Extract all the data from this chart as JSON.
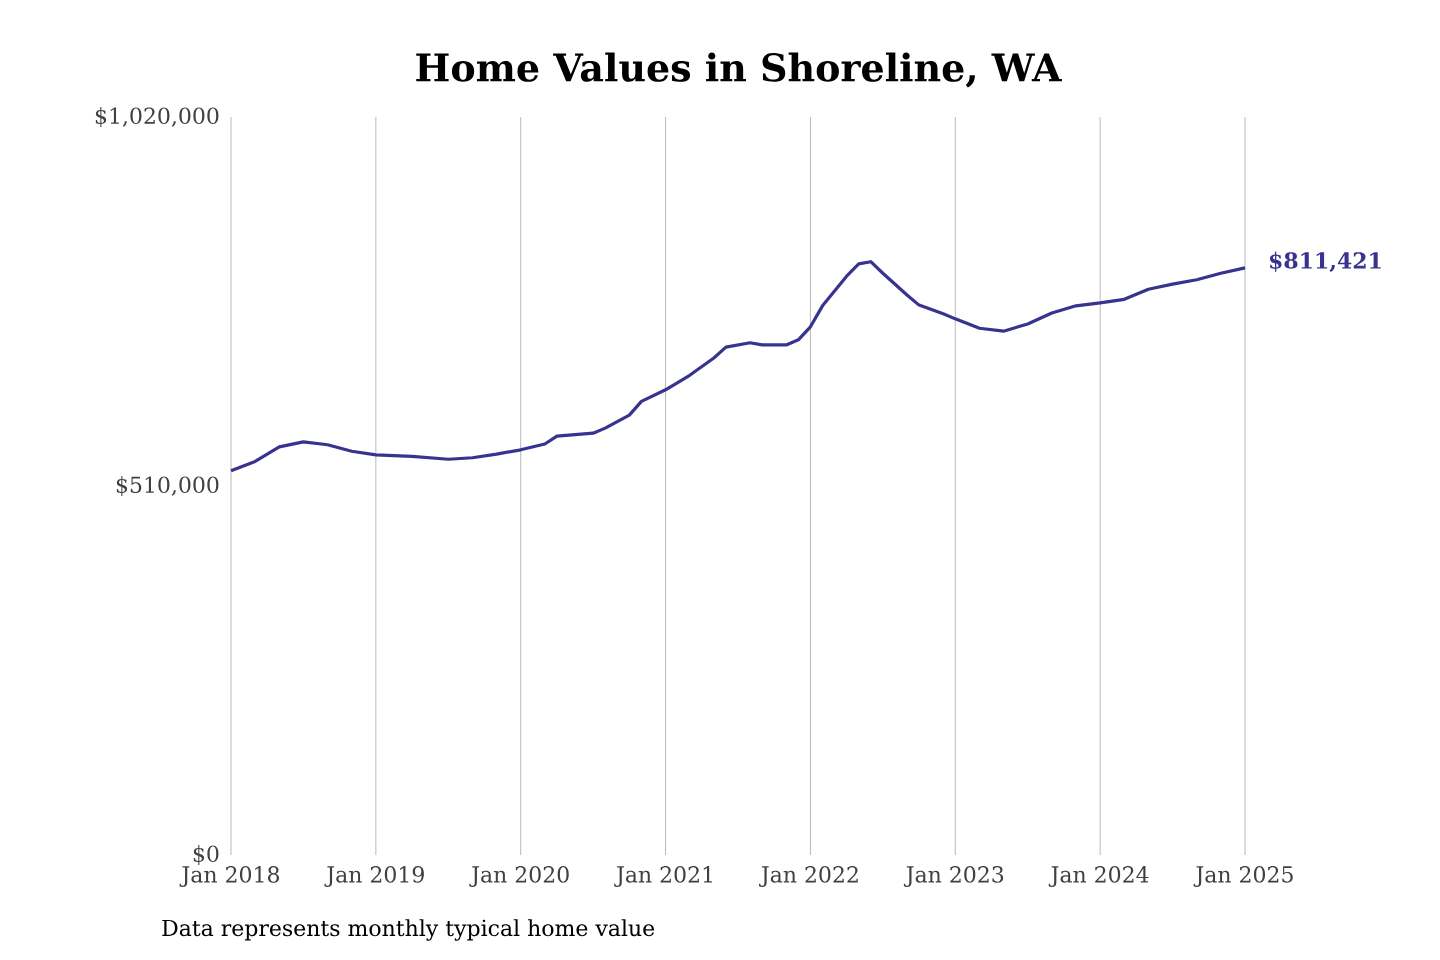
{
  "chart_data": {
    "type": "line",
    "title": "Home Values in Shoreline, WA",
    "x": [
      "2018-01",
      "2018-03",
      "2018-05",
      "2018-07",
      "2018-09",
      "2018-11",
      "2019-01",
      "2019-04",
      "2019-07",
      "2019-09",
      "2019-11",
      "2020-01",
      "2020-03",
      "2020-04",
      "2020-07",
      "2020-08",
      "2020-10",
      "2020-11",
      "2021-01",
      "2021-03",
      "2021-05",
      "2021-06",
      "2021-08",
      "2021-09",
      "2021-11",
      "2021-12",
      "2022-01",
      "2022-02",
      "2022-04",
      "2022-05",
      "2022-06",
      "2022-07",
      "2022-09",
      "2022-10",
      "2022-12",
      "2023-01",
      "2023-03",
      "2023-05",
      "2023-07",
      "2023-09",
      "2023-11",
      "2024-01",
      "2024-03",
      "2024-05",
      "2024-07",
      "2024-09",
      "2024-11",
      "2025-01"
    ],
    "series": [
      {
        "color": "#38338f",
        "values": [
          531000,
          544000,
          564000,
          571000,
          567000,
          558000,
          553000,
          551000,
          547000,
          549000,
          554000,
          560000,
          568000,
          579000,
          583000,
          590000,
          608000,
          627000,
          643000,
          663000,
          687000,
          702000,
          708000,
          705000,
          705000,
          712000,
          730000,
          759000,
          800000,
          817000,
          820000,
          804000,
          774000,
          760000,
          748000,
          741000,
          728000,
          724000,
          734000,
          749000,
          759000,
          763000,
          768000,
          782000,
          789000,
          795000,
          804000,
          811421
        ]
      }
    ],
    "xticks": [
      {
        "value": "2018-01",
        "label": "Jan 2018"
      },
      {
        "value": "2019-01",
        "label": "Jan 2019"
      },
      {
        "value": "2020-01",
        "label": "Jan 2020"
      },
      {
        "value": "2021-01",
        "label": "Jan 2021"
      },
      {
        "value": "2022-01",
        "label": "Jan 2022"
      },
      {
        "value": "2023-01",
        "label": "Jan 2023"
      },
      {
        "value": "2024-01",
        "label": "Jan 2024"
      },
      {
        "value": "2025-01",
        "label": "Jan 2025"
      }
    ],
    "xlim": [
      "2018-01",
      "2025-01"
    ],
    "ylim": [
      0,
      1020000
    ],
    "yticks": [
      {
        "value": 0,
        "label": "$0"
      },
      {
        "value": 510000,
        "label": "$510,000"
      },
      {
        "value": 1020000,
        "label": "$1,020,000"
      }
    ],
    "grid": "x",
    "marker": "none",
    "line_style": "solid",
    "annotations": [
      {
        "text": "$811,421",
        "x": "2025-01",
        "y": 811421
      },
      "Data represents monthly typical home value"
    ]
  }
}
